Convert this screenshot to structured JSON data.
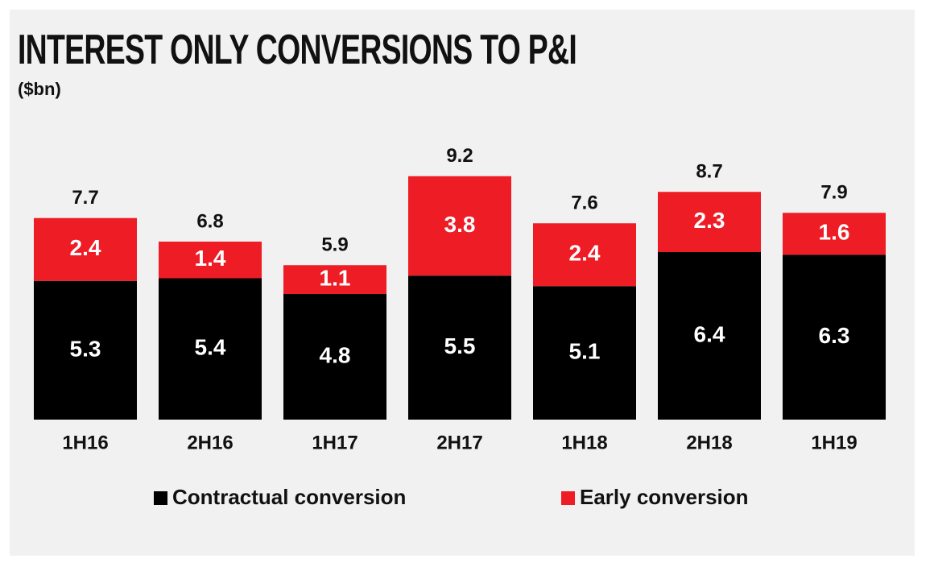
{
  "chart_data": {
    "type": "bar",
    "stacked": true,
    "title": "INTEREST ONLY CONVERSIONS TO P&I",
    "subtitle": "($bn)",
    "categories": [
      "1H16",
      "2H16",
      "1H17",
      "2H17",
      "1H18",
      "2H18",
      "1H19"
    ],
    "series": [
      {
        "name": "Contractual conversion",
        "values": [
          5.3,
          5.4,
          4.8,
          5.5,
          5.1,
          6.4,
          6.3
        ],
        "color": "#000000"
      },
      {
        "name": "Early conversion",
        "values": [
          2.4,
          1.4,
          1.1,
          3.8,
          2.4,
          2.3,
          1.6
        ],
        "color": "#ee1c25"
      }
    ],
    "totals": [
      7.7,
      6.8,
      5.9,
      9.2,
      7.6,
      8.7,
      7.9
    ],
    "ylim": [
      0,
      9.2
    ],
    "grid": false,
    "legend_position": "bottom"
  }
}
